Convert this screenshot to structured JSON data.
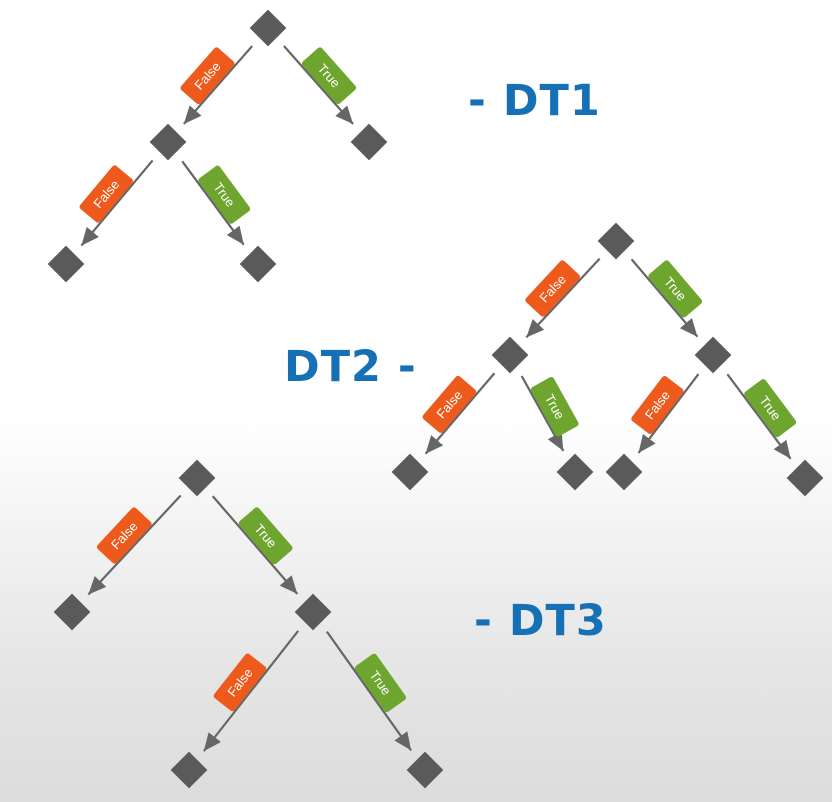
{
  "colors": {
    "title": "#1570b5",
    "node": "#5a5a5a",
    "edge": "#666666",
    "false_badge": "#ee5a1c",
    "true_badge": "#6ea52e",
    "badge_text": "#ffffff"
  },
  "icons": {
    "node": "diamond-node-icon",
    "edge": "arrow-connector"
  },
  "trees": [
    {
      "id": "dt1",
      "title": "- DT1",
      "edges": [
        {
          "from": "root",
          "to": "l",
          "label": "False"
        },
        {
          "from": "root",
          "to": "r",
          "label": "True"
        },
        {
          "from": "l",
          "to": "ll",
          "label": "False"
        },
        {
          "from": "l",
          "to": "lr",
          "label": "True"
        }
      ]
    },
    {
      "id": "dt2",
      "title": "DT2 -",
      "edges": [
        {
          "from": "root",
          "to": "l",
          "label": "False"
        },
        {
          "from": "root",
          "to": "r",
          "label": "True"
        },
        {
          "from": "l",
          "to": "ll",
          "label": "False"
        },
        {
          "from": "l",
          "to": "lr",
          "label": "True"
        },
        {
          "from": "r",
          "to": "rl",
          "label": "False"
        },
        {
          "from": "r",
          "to": "rr",
          "label": "True"
        }
      ]
    },
    {
      "id": "dt3",
      "title": "- DT3",
      "edges": [
        {
          "from": "root",
          "to": "l",
          "label": "False"
        },
        {
          "from": "root",
          "to": "r",
          "label": "True"
        },
        {
          "from": "r",
          "to": "rl",
          "label": "False"
        },
        {
          "from": "r",
          "to": "rr",
          "label": "True"
        }
      ]
    }
  ]
}
